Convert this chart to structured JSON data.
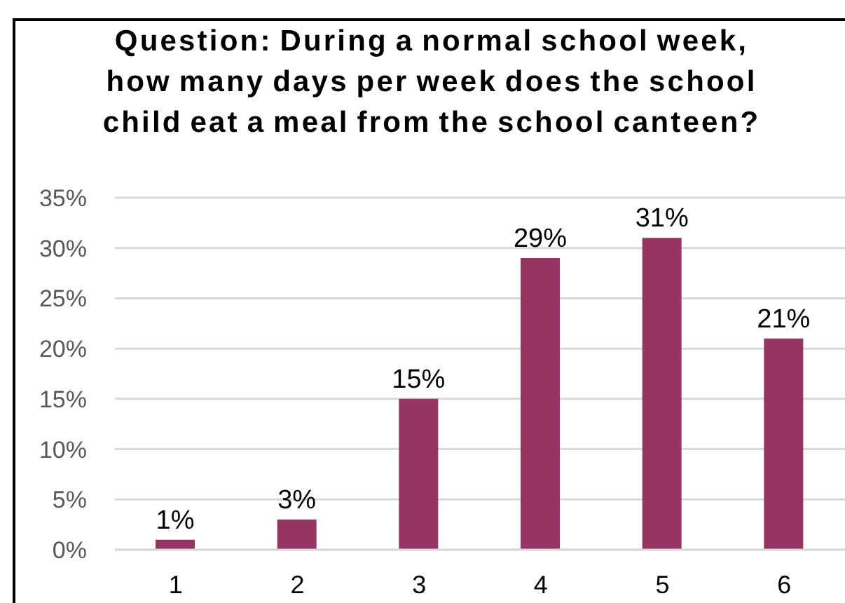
{
  "chart_data": {
    "type": "bar",
    "title": "Question: During a normal school week, how many days per week does the school child eat a meal from the school canteen?",
    "categories": [
      "1",
      "2",
      "3",
      "4",
      "5",
      "6"
    ],
    "values": [
      1,
      3,
      15,
      29,
      31,
      21
    ],
    "value_labels": [
      "1%",
      "3%",
      "15%",
      "29%",
      "31%",
      "21%"
    ],
    "color": "#963464",
    "ylim": [
      0,
      35
    ],
    "yticks": [
      {
        "value": 0,
        "label": "0%"
      },
      {
        "value": 5,
        "label": "5%"
      },
      {
        "value": 10,
        "label": "10%"
      },
      {
        "value": 15,
        "label": "15%"
      },
      {
        "value": 20,
        "label": "20%"
      },
      {
        "value": 25,
        "label": "25%"
      },
      {
        "value": 30,
        "label": "30%"
      },
      {
        "value": 35,
        "label": "35%"
      }
    ],
    "grid": "y"
  }
}
